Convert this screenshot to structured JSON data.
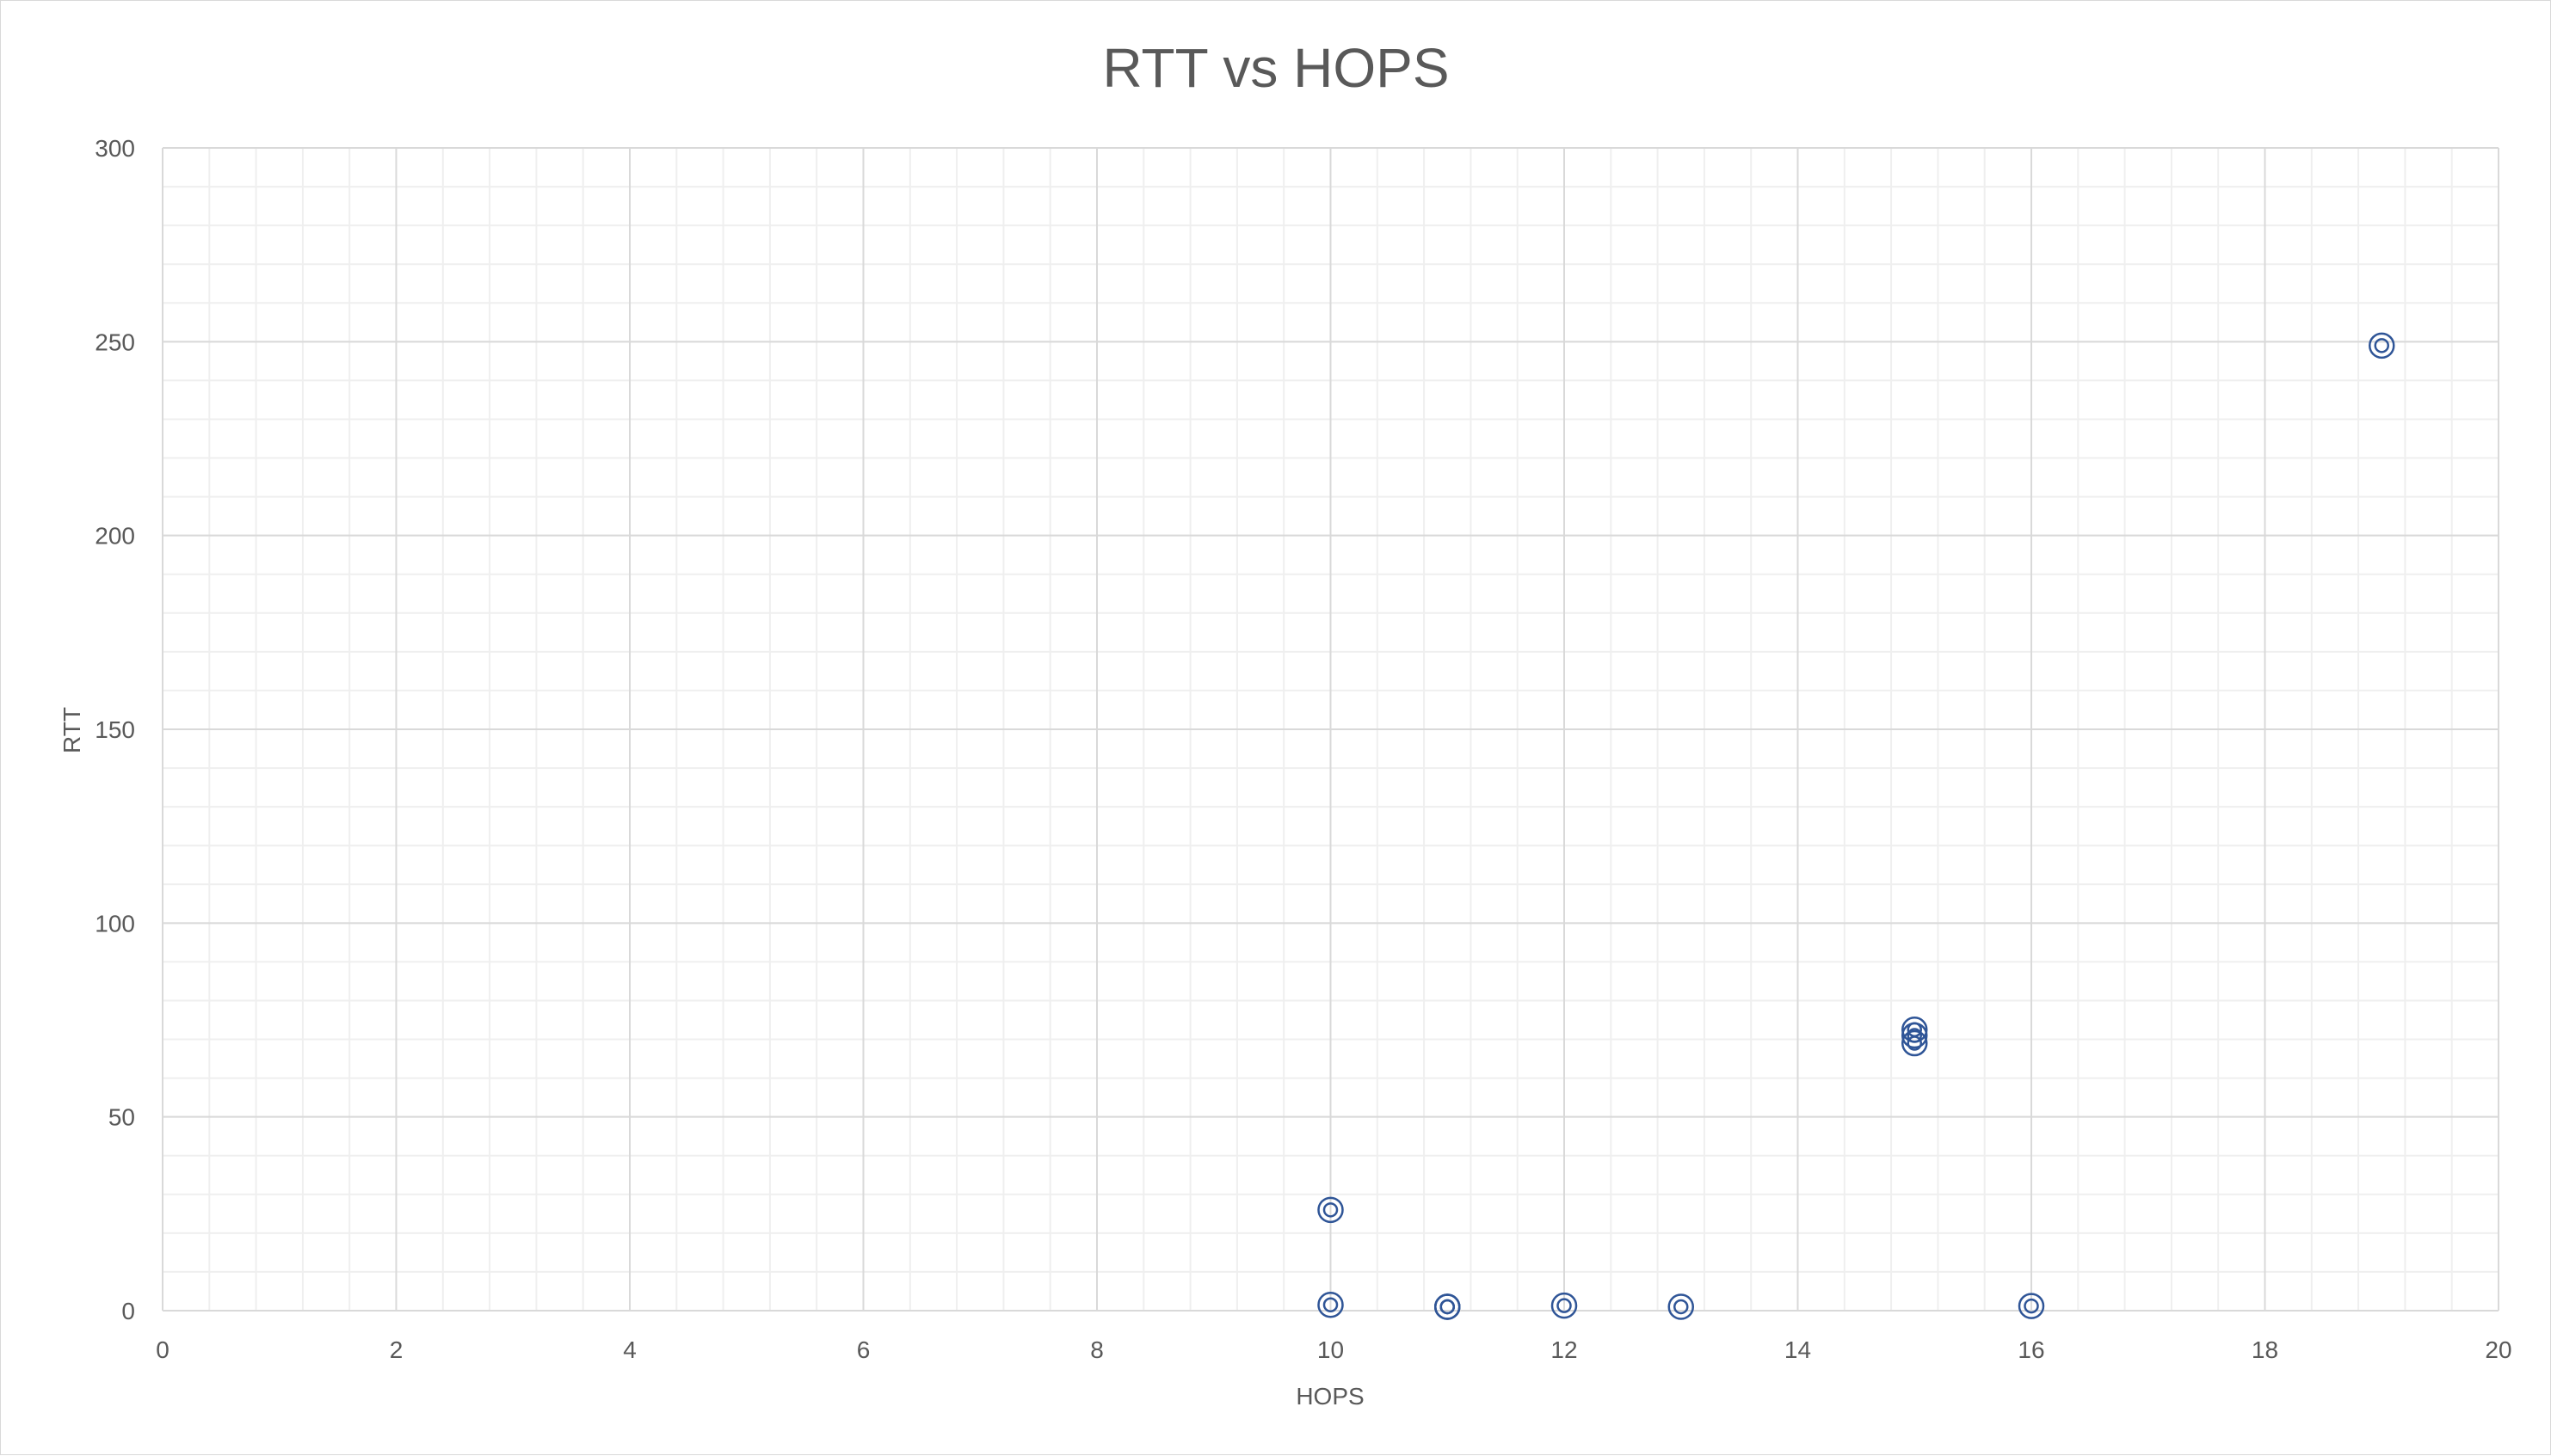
{
  "chart_data": {
    "type": "scatter",
    "title": "RTT vs HOPS",
    "xlabel": "HOPS",
    "ylabel": "RTT",
    "xlim": [
      0,
      20
    ],
    "ylim": [
      0,
      300
    ],
    "x_ticks": [
      "0",
      "2",
      "4",
      "6",
      "8",
      "10",
      "12",
      "14",
      "16",
      "18",
      "20"
    ],
    "y_ticks": [
      "0",
      "50",
      "100",
      "150",
      "200",
      "250",
      "300"
    ],
    "grid": true,
    "minor_grid": true,
    "legend": "none",
    "marker_color": "#2f5597",
    "series": [
      {
        "points": [
          {
            "x": 10,
            "y": 26
          },
          {
            "x": 10,
            "y": 1.5
          },
          {
            "x": 11,
            "y": 1
          },
          {
            "x": 11,
            "y": 1
          },
          {
            "x": 11,
            "y": 1
          },
          {
            "x": 12,
            "y": 1.3
          },
          {
            "x": 13,
            "y": 1
          },
          {
            "x": 15,
            "y": 72.5
          },
          {
            "x": 15,
            "y": 71
          },
          {
            "x": 15,
            "y": 69
          },
          {
            "x": 16,
            "y": 1.2
          },
          {
            "x": 19,
            "y": 249
          }
        ]
      }
    ]
  }
}
